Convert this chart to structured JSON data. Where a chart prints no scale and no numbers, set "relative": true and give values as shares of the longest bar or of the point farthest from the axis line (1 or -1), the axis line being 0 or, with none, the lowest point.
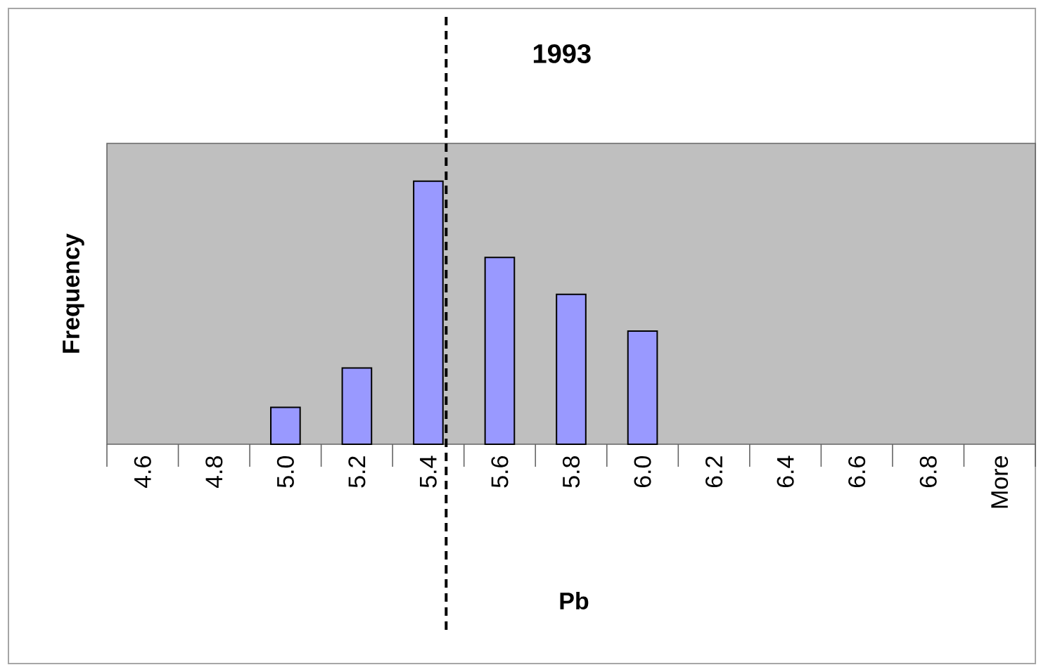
{
  "chart_data": {
    "type": "bar",
    "title": "1993",
    "xlabel": "Pb",
    "ylabel": "Frequency",
    "categories": [
      "4.6",
      "4.8",
      "5.0",
      "5.2",
      "5.4",
      "5.6",
      "5.8",
      "6.0",
      "6.2",
      "6.4",
      "6.6",
      "6.8",
      "More"
    ],
    "values": [
      0,
      0,
      0.14,
      0.29,
      1,
      0.71,
      0.57,
      0.43,
      0,
      0,
      0,
      0,
      0
    ],
    "color": "#9999ff",
    "relative": true,
    "ref_lines": [
      {
        "axis": "x",
        "value": "5.4",
        "line_style": "dashed",
        "color": "#000000"
      }
    ]
  }
}
